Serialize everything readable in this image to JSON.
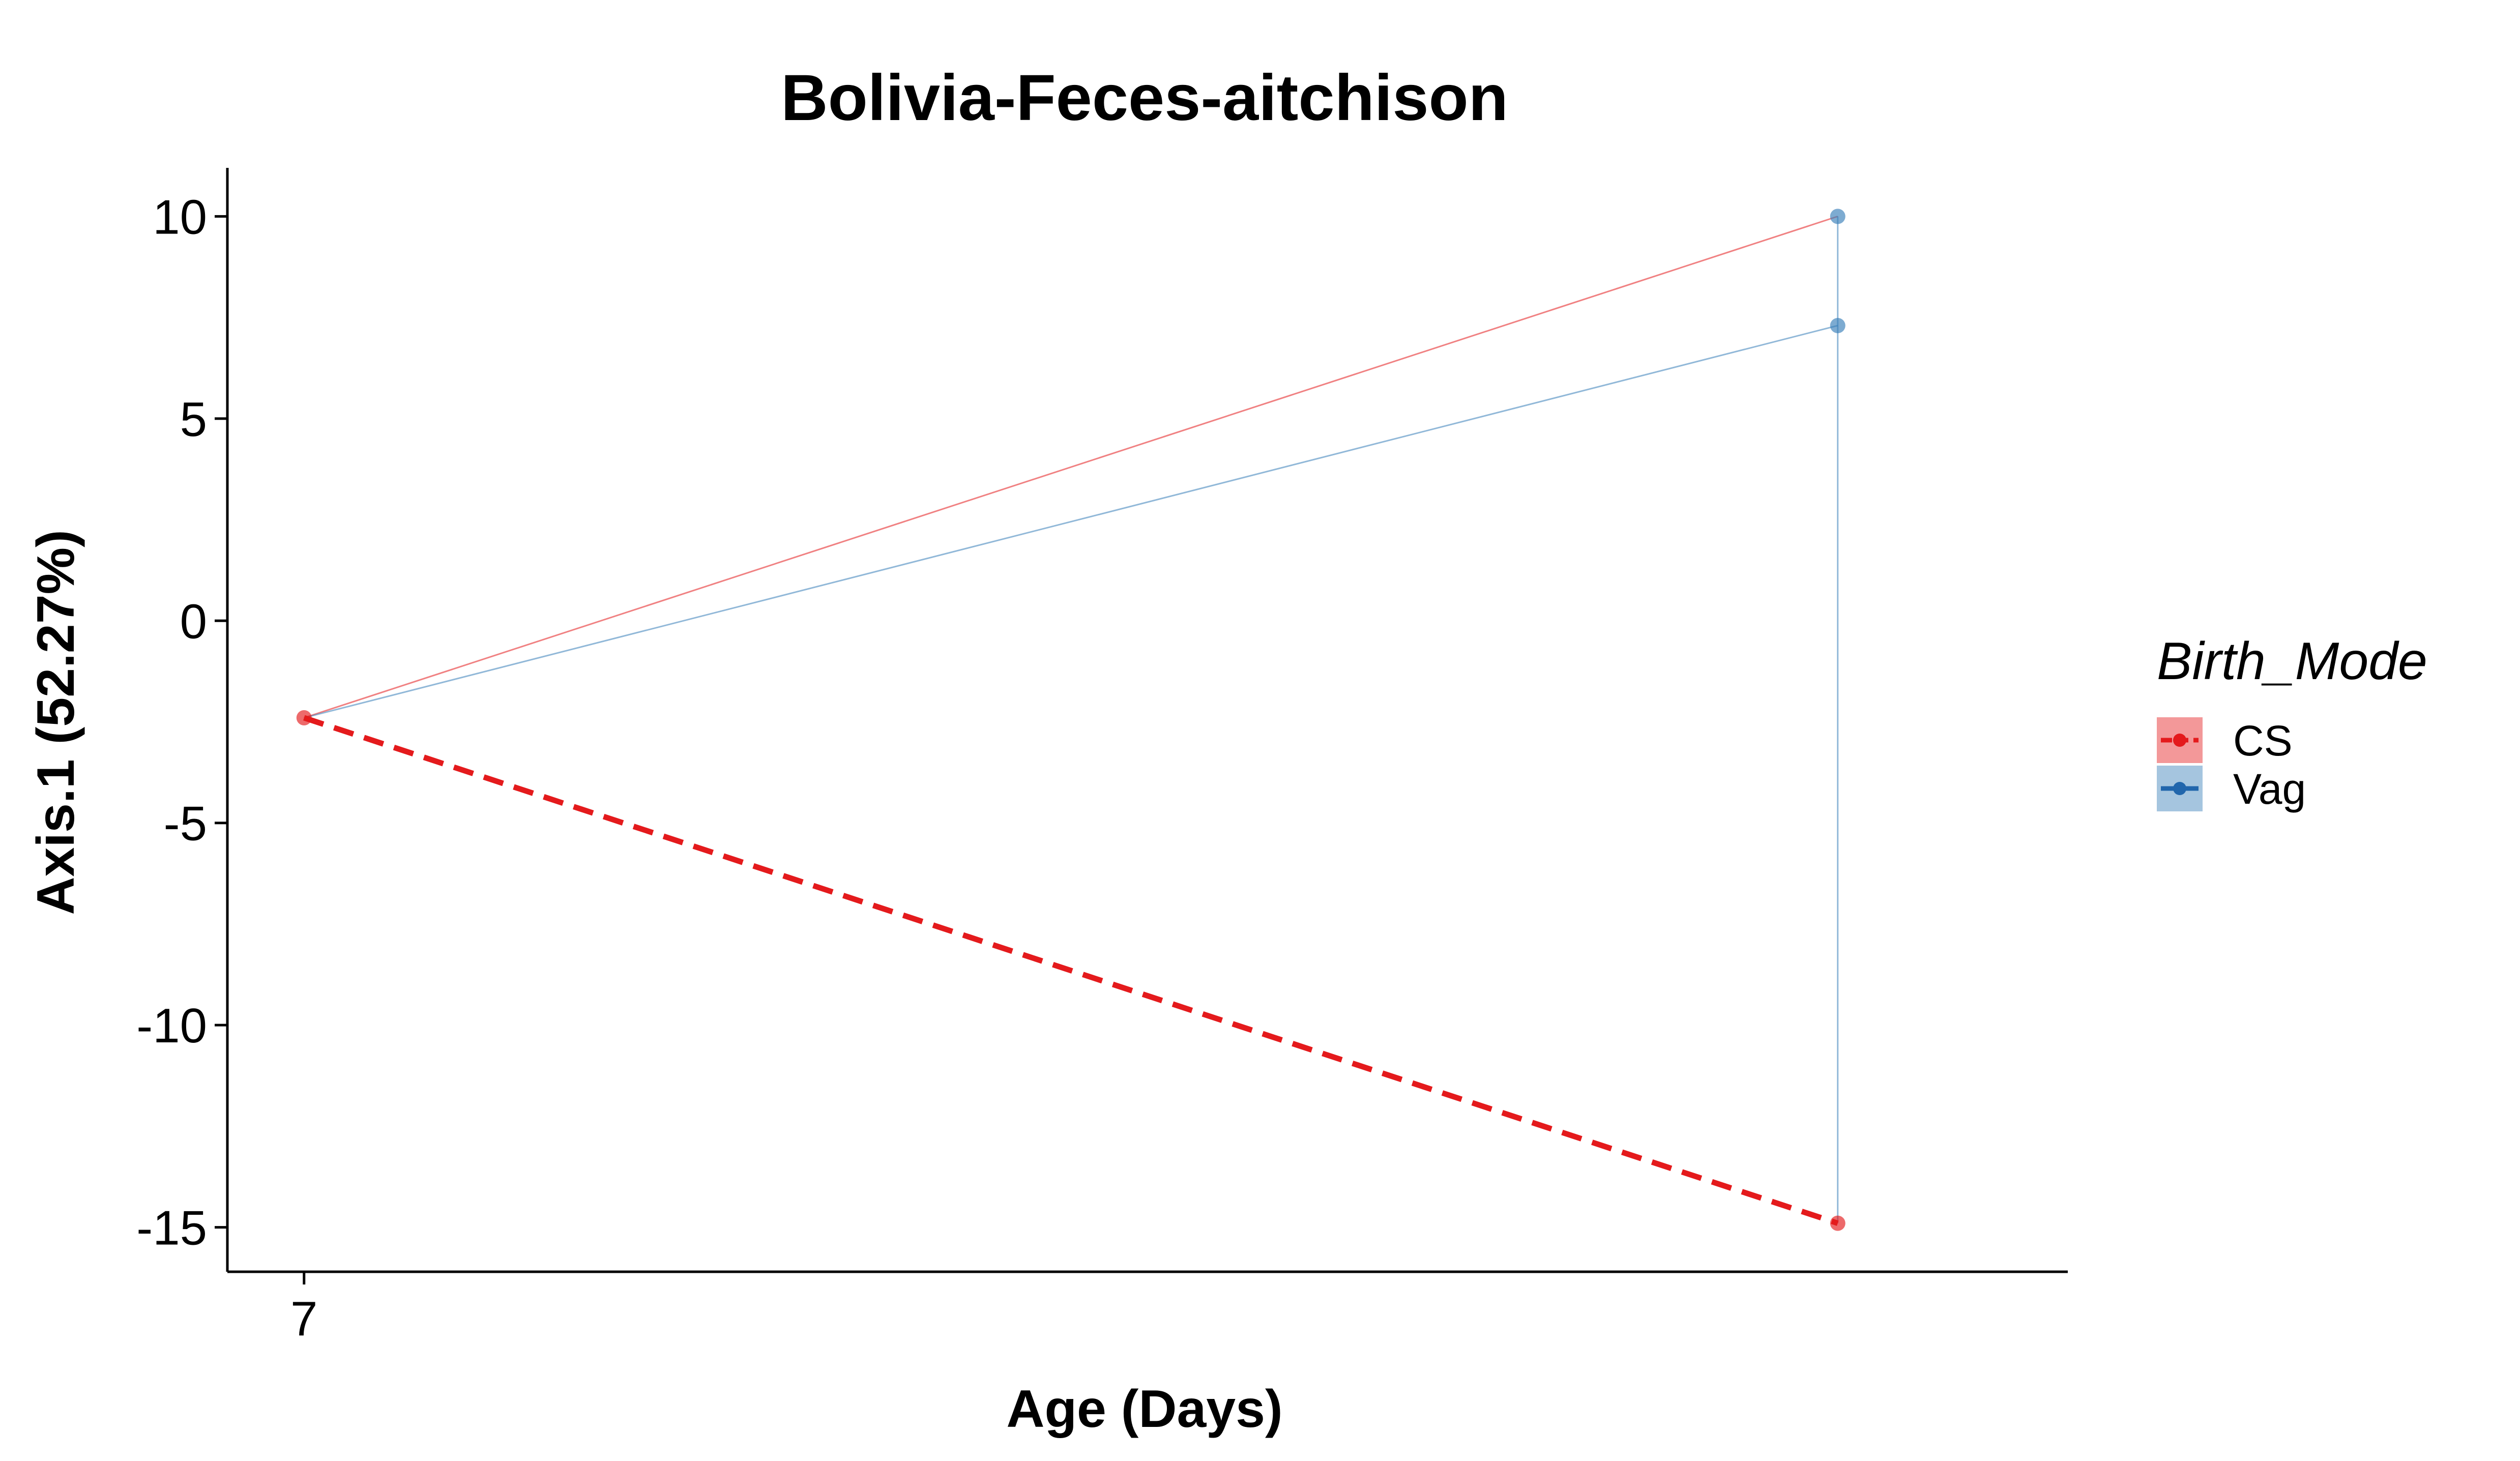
{
  "chart_data": {
    "type": "line",
    "title": "Bolivia-Feces-aitchison",
    "xlabel": "Age (Days)",
    "ylabel": "Axis.1 (52.27%)",
    "x_ticks": [
      7
    ],
    "y_ticks": [
      10,
      5,
      0,
      -5,
      -10,
      -15
    ],
    "ylim": [
      -16.1,
      11.2
    ],
    "xlim": [
      6.5,
      18.5
    ],
    "grid": false,
    "legend": {
      "title": "Birth_Mode",
      "placement": "right",
      "entries": [
        {
          "label": "CS",
          "color": "#E41A1C",
          "linestyle": "dashed"
        },
        {
          "label": "Vag",
          "color": "#377EB8",
          "linestyle": "solid"
        }
      ]
    },
    "points": [
      {
        "series": "CS",
        "x": 7,
        "y": -2.4
      },
      {
        "series": "CS",
        "x": 17,
        "y": -14.9
      },
      {
        "series": "Vag",
        "x": 17,
        "y": 10.0
      },
      {
        "series": "Vag",
        "x": 17,
        "y": 7.3
      }
    ],
    "thin_lines": [
      {
        "series": "CS",
        "points": [
          [
            7,
            -2.4
          ],
          [
            17,
            10.0
          ]
        ]
      },
      {
        "series": "Vag",
        "points": [
          [
            7,
            -2.4
          ],
          [
            17,
            7.3
          ]
        ]
      },
      {
        "series": "Vag",
        "points": [
          [
            17,
            10.0
          ],
          [
            17,
            -14.9
          ]
        ]
      }
    ],
    "trend_lines": [
      {
        "series": "CS",
        "points": [
          [
            7,
            -2.4
          ],
          [
            17,
            -14.9
          ]
        ]
      }
    ]
  }
}
